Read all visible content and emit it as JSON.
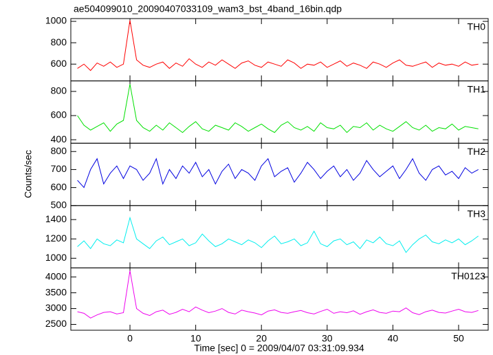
{
  "title": "ae504099010_20090407033109_wam3_bst_4band_16bin.qdp",
  "x_label": "Time [sec] 0 = 2009/04/07 03:31:09.934",
  "y_label": "Counts/sec",
  "xlim": [
    -9,
    54.5
  ],
  "xticks": [
    0,
    10,
    20,
    30,
    40,
    50
  ],
  "x": [
    -8,
    -7,
    -6,
    -5,
    -4,
    -3,
    -2,
    -1,
    0,
    1,
    2,
    3,
    4,
    5,
    6,
    7,
    8,
    9,
    10,
    11,
    12,
    13,
    14,
    15,
    16,
    17,
    18,
    19,
    20,
    21,
    22,
    23,
    24,
    25,
    26,
    27,
    28,
    29,
    30,
    31,
    32,
    33,
    34,
    35,
    36,
    37,
    38,
    39,
    40,
    41,
    42,
    43,
    44,
    45,
    46,
    47,
    48,
    49,
    50,
    51,
    52,
    53
  ],
  "chart_data": [
    {
      "type": "line",
      "label": "TH0",
      "color": "#ff0000",
      "ylim": [
        443,
        1026
      ],
      "yticks": [
        600,
        800,
        1000
      ],
      "values": [
        560,
        600,
        540,
        610,
        580,
        620,
        570,
        600,
        1010,
        640,
        590,
        570,
        600,
        620,
        560,
        610,
        580,
        650,
        600,
        570,
        620,
        590,
        640,
        600,
        560,
        610,
        630,
        590,
        570,
        620,
        600,
        580,
        640,
        610,
        560,
        600,
        590,
        620,
        570,
        600,
        630,
        580,
        610,
        590,
        560,
        620,
        600,
        570,
        610,
        640,
        590,
        580,
        600,
        620,
        570,
        610,
        590,
        600,
        580,
        620,
        590,
        600
      ]
    },
    {
      "type": "line",
      "label": "TH1",
      "color": "#00e000",
      "ylim": [
        371,
        887
      ],
      "yticks": [
        400,
        600,
        800
      ],
      "values": [
        600,
        520,
        480,
        510,
        540,
        470,
        530,
        560,
        860,
        560,
        500,
        470,
        520,
        480,
        540,
        500,
        460,
        510,
        550,
        490,
        470,
        520,
        500,
        480,
        540,
        510,
        470,
        500,
        530,
        490,
        460,
        520,
        550,
        500,
        480,
        510,
        470,
        540,
        500,
        490,
        520,
        460,
        510,
        500,
        540,
        480,
        520,
        490,
        470,
        510,
        550,
        500,
        480,
        520,
        470,
        500,
        490,
        530,
        480,
        510,
        500,
        490
      ]
    },
    {
      "type": "line",
      "label": "TH2",
      "color": "#0000e0",
      "ylim": [
        500,
        846
      ],
      "yticks": [
        500,
        600,
        700,
        800
      ],
      "values": [
        640,
        600,
        700,
        760,
        620,
        680,
        720,
        650,
        720,
        700,
        640,
        680,
        760,
        620,
        700,
        650,
        720,
        680,
        740,
        660,
        700,
        620,
        690,
        730,
        650,
        700,
        680,
        640,
        720,
        760,
        660,
        690,
        710,
        630,
        680,
        740,
        700,
        650,
        690,
        720,
        660,
        700,
        640,
        680,
        750,
        700,
        660,
        690,
        720,
        650,
        700,
        760,
        680,
        640,
        700,
        720,
        670,
        690,
        650,
        710,
        680,
        700
      ]
    },
    {
      "type": "line",
      "label": "TH3",
      "color": "#00eeee",
      "ylim": [
        900,
        1545
      ],
      "yticks": [
        1000,
        1200,
        1400
      ],
      "values": [
        1120,
        1180,
        1100,
        1200,
        1150,
        1130,
        1190,
        1160,
        1420,
        1200,
        1150,
        1100,
        1180,
        1220,
        1140,
        1170,
        1200,
        1130,
        1160,
        1250,
        1180,
        1120,
        1150,
        1200,
        1170,
        1140,
        1190,
        1160,
        1110,
        1180,
        1230,
        1150,
        1170,
        1200,
        1130,
        1160,
        1280,
        1150,
        1120,
        1180,
        1200,
        1140,
        1170,
        1100,
        1190,
        1160,
        1220,
        1150,
        1130,
        1180,
        1060,
        1140,
        1200,
        1240,
        1170,
        1150,
        1190,
        1160,
        1200,
        1140,
        1180,
        1230
      ]
    },
    {
      "type": "line",
      "label": "TH0123",
      "color": "#ee00ee",
      "ylim": [
        2315,
        4288
      ],
      "yticks": [
        2500,
        3000,
        3500,
        4000
      ],
      "values": [
        2900,
        2850,
        2700,
        2800,
        2880,
        2900,
        2830,
        2870,
        4200,
        3000,
        2850,
        2780,
        2900,
        2950,
        2820,
        2880,
        2980,
        2900,
        3050,
        2950,
        2870,
        2920,
        3000,
        2880,
        2830,
        2950,
        2900,
        2860,
        2800,
        2920,
        2960,
        2880,
        2850,
        2900,
        2940,
        2870,
        2830,
        2910,
        2980,
        2850,
        2900,
        2870,
        2930,
        2820,
        2900,
        2960,
        2880,
        2850,
        2920,
        2900,
        3020,
        2870,
        2810,
        2900,
        2950,
        2880,
        2860,
        2920,
        2980,
        2900,
        2880,
        2940
      ]
    }
  ]
}
